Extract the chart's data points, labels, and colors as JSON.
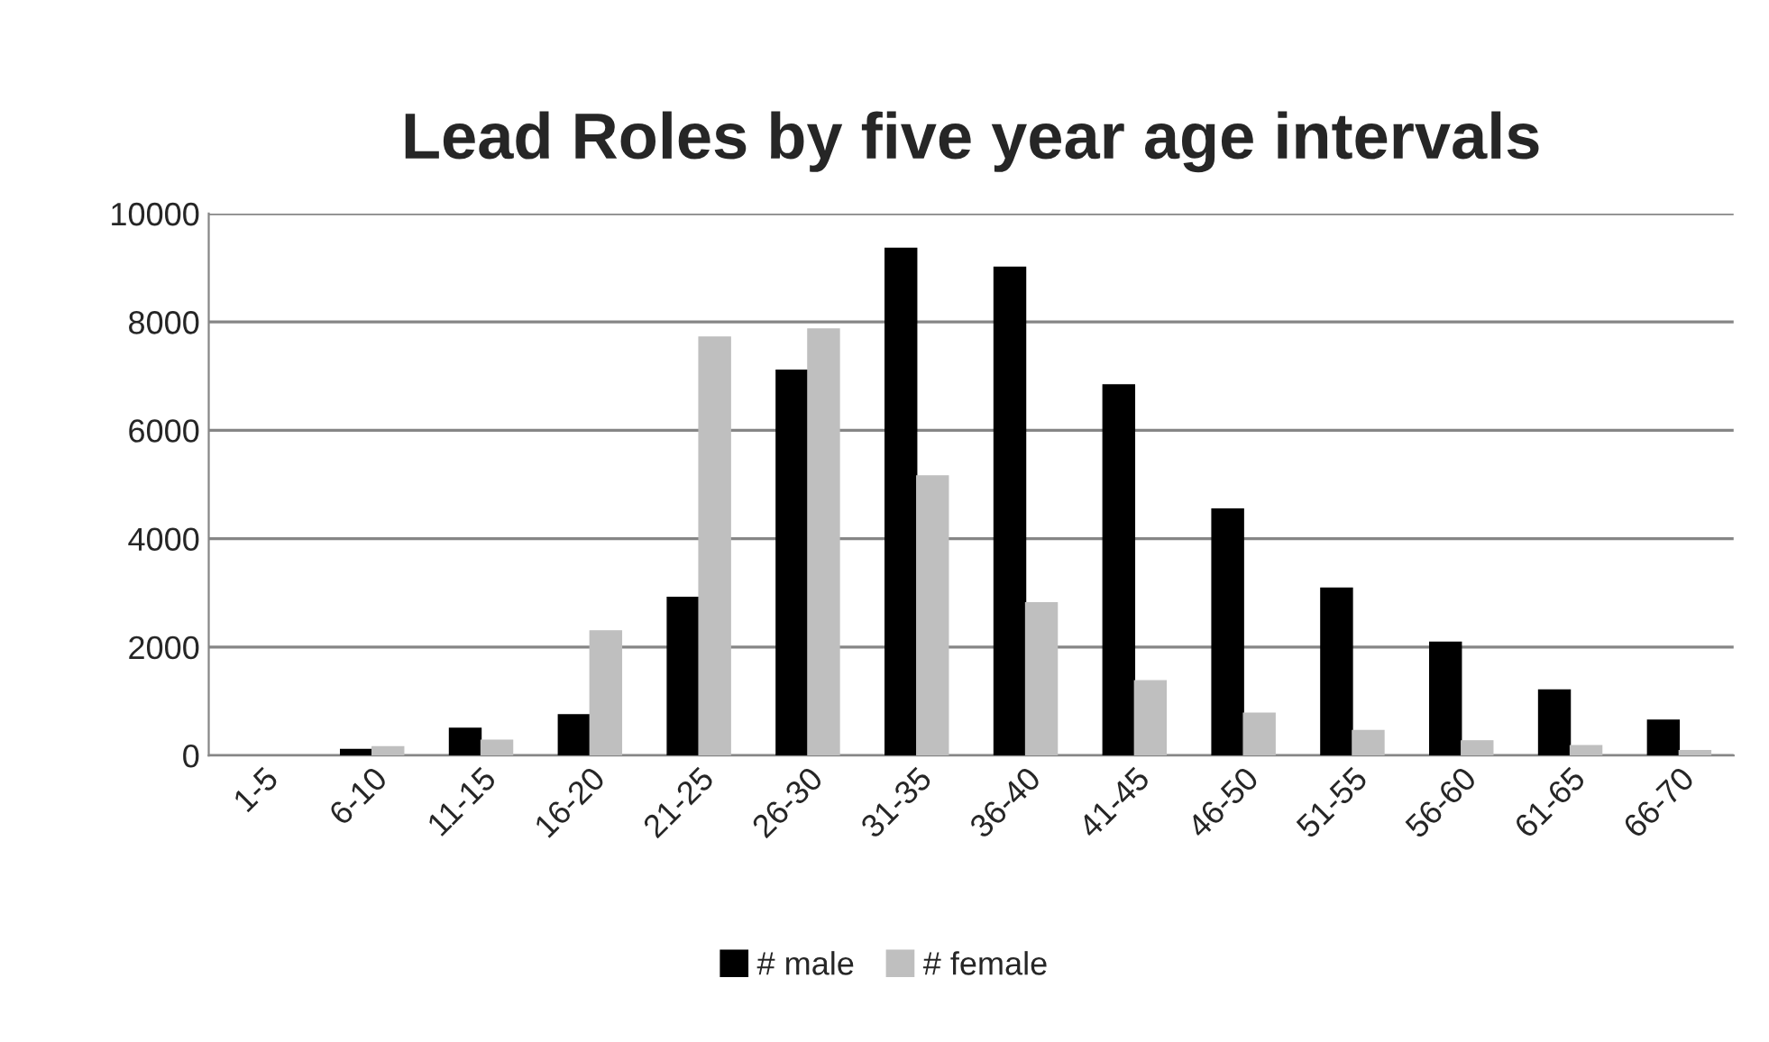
{
  "chart_data": {
    "type": "bar",
    "title": "Lead Roles by five year age intervals",
    "categories": [
      "1-5",
      "6-10",
      "11-15",
      "16-20",
      "21-25",
      "26-30",
      "31-35",
      "36-40",
      "41-45",
      "46-50",
      "51-55",
      "56-60",
      "61-65",
      "66-70"
    ],
    "series": [
      {
        "name": "# male",
        "color": "#000000",
        "values": [
          null,
          110,
          500,
          750,
          2920,
          7110,
          9360,
          9010,
          6840,
          4550,
          3090,
          2090,
          1210,
          650
        ]
      },
      {
        "name": "# female",
        "color": "#bfbfbf",
        "values": [
          null,
          160,
          280,
          2300,
          7720,
          7870,
          5160,
          2820,
          1380,
          780,
          460,
          270,
          180,
          90
        ]
      }
    ],
    "ylim": [
      0,
      10000
    ],
    "yticks": [
      0,
      2000,
      4000,
      6000,
      8000,
      10000
    ],
    "grid": "y",
    "legend": "bottom"
  }
}
